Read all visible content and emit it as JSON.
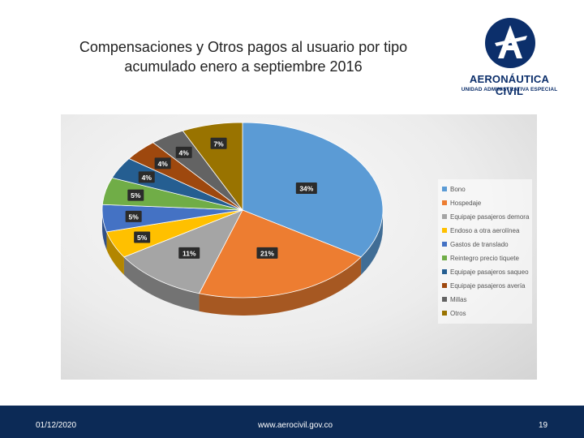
{
  "slide": {
    "title_line1": "Compensaciones y Otros pagos al usuario por tipo",
    "title_line2": "acumulado enero a septiembre 2016"
  },
  "logo": {
    "name": "AERONÁUTICA CIVIL",
    "subtitle": "UNIDAD ADMINISTRATIVA ESPECIAL",
    "color": "#0c2f6b"
  },
  "footer": {
    "date": "01/12/2020",
    "url": "www.aerocivil.gov.co",
    "page": "19",
    "background": "#0c2a56"
  },
  "chart_data": {
    "type": "pie",
    "legend_position": "right",
    "categories": [
      "Bono",
      "Hospedaje",
      "Equipaje pasajeros demora",
      "Endoso a otra aerolínea",
      "Gastos de translado",
      "Reintegro precio tiquete",
      "Equipaje pasajeros saqueo",
      "Equipaje pasajeros avería",
      "Millas",
      "Otros"
    ],
    "values": [
      34,
      21,
      11,
      5,
      5,
      5,
      4,
      4,
      4,
      7
    ],
    "labels": [
      "34%",
      "21%",
      "11%",
      "5%",
      "5%",
      "5%",
      "4%",
      "4%",
      "4%",
      "7%"
    ],
    "colors": [
      "#5b9bd5",
      "#ed7d31",
      "#a5a5a5",
      "#ffc000",
      "#4472c4",
      "#70ad47",
      "#255e91",
      "#9e480e",
      "#636363",
      "#997300"
    ]
  }
}
